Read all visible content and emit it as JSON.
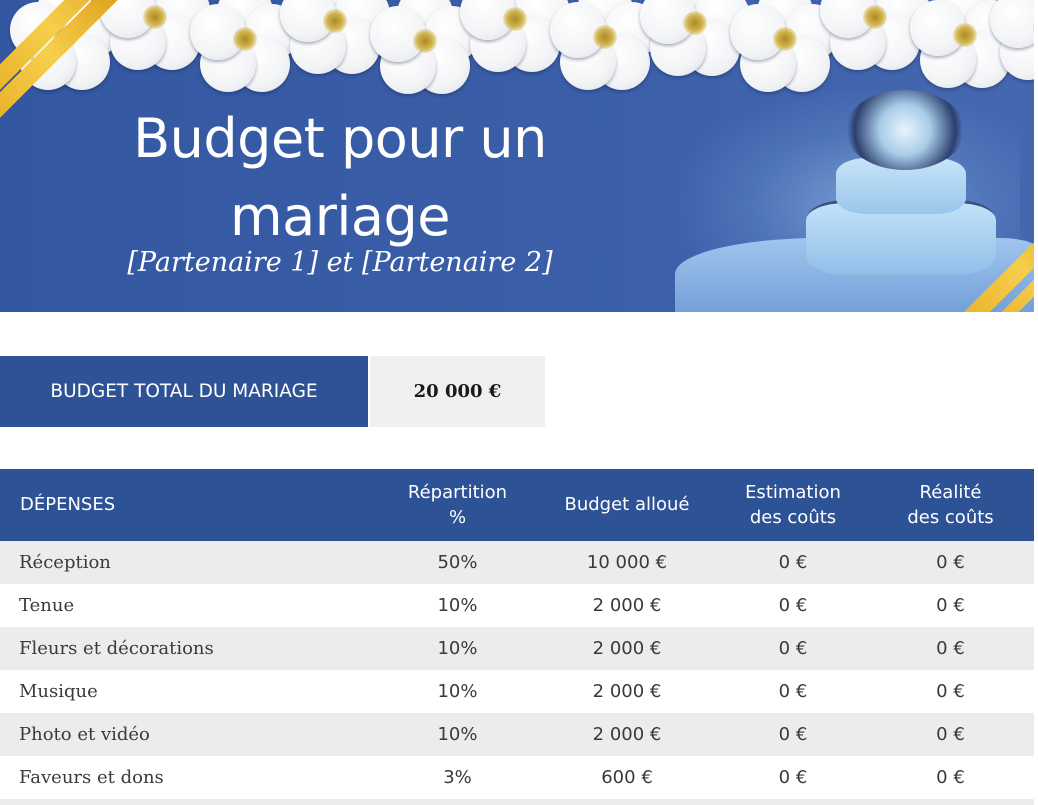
{
  "header": {
    "title_line1": "Budget pour un",
    "title_line2": "mariage",
    "subtitle": "[Partenaire 1] et [Partenaire 2]",
    "images": [
      "white-flowers-border",
      "gold-ribbon",
      "wedding-cake"
    ]
  },
  "total_budget": {
    "label": "BUDGET TOTAL DU MARIAGE",
    "value": "20 000 €"
  },
  "colors": {
    "primary_blue": "#2d5396",
    "row_shade": "#ececec",
    "gold": "#f2c443"
  },
  "expenses_table": {
    "columns": [
      "DÉPENSES",
      "Répartition %",
      "Budget alloué",
      "Estimation des coûts",
      "Réalité des coûts"
    ],
    "header": {
      "col1": "DÉPENSES",
      "col2_line1": "Répartition",
      "col2_line2": "%",
      "col3": "Budget alloué",
      "col4_line1": "Estimation",
      "col4_line2": "des coûts",
      "col5_line1": "Réalité",
      "col5_line2": "des coûts"
    },
    "rows": [
      {
        "expense": "Réception",
        "share": "50%",
        "allocated": "10 000 €",
        "estimated": "0 €",
        "actual": "0 €"
      },
      {
        "expense": "Tenue",
        "share": "10%",
        "allocated": "2 000 €",
        "estimated": "0 €",
        "actual": "0 €"
      },
      {
        "expense": "Fleurs et décorations",
        "share": "10%",
        "allocated": "2 000 €",
        "estimated": "0 €",
        "actual": "0 €"
      },
      {
        "expense": "Musique",
        "share": "10%",
        "allocated": "2 000 €",
        "estimated": "0 €",
        "actual": "0 €"
      },
      {
        "expense": "Photo et vidéo",
        "share": "10%",
        "allocated": "2 000 €",
        "estimated": "0 €",
        "actual": "0 €"
      },
      {
        "expense": "Faveurs et dons",
        "share": "3%",
        "allocated": "600 €",
        "estimated": "0 €",
        "actual": "0 €"
      }
    ]
  }
}
